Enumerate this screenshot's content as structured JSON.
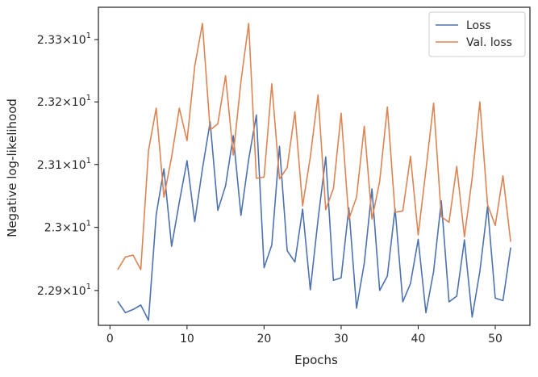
{
  "chart_data": {
    "type": "line",
    "title": "",
    "xlabel": "Epochs",
    "ylabel": "Negative log-likelihood",
    "xlim": [
      -1.5,
      54.5
    ],
    "ylim": [
      22.845,
      23.352
    ],
    "y_scale": "log",
    "grid": false,
    "legend_position": "top-right",
    "x_ticks": [
      {
        "value": 0,
        "label": "0"
      },
      {
        "value": 10,
        "label": "10"
      },
      {
        "value": 20,
        "label": "20"
      },
      {
        "value": 30,
        "label": "30"
      },
      {
        "value": 40,
        "label": "40"
      },
      {
        "value": 50,
        "label": "50"
      }
    ],
    "y_ticks": [
      {
        "value": 22.9,
        "mantissa": "2.29",
        "times": "×",
        "base": "10",
        "exp": "1"
      },
      {
        "value": 23.0,
        "mantissa": "2.3",
        "times": "×",
        "base": "10",
        "exp": "1"
      },
      {
        "value": 23.1,
        "mantissa": "2.31",
        "times": "×",
        "base": "10",
        "exp": "1"
      },
      {
        "value": 23.2,
        "mantissa": "2.32",
        "times": "×",
        "base": "10",
        "exp": "1"
      },
      {
        "value": 23.3,
        "mantissa": "2.33",
        "times": "×",
        "base": "10",
        "exp": "1"
      }
    ],
    "x": [
      1,
      2,
      3,
      4,
      5,
      6,
      7,
      8,
      9,
      10,
      11,
      12,
      13,
      14,
      15,
      16,
      17,
      18,
      19,
      20,
      21,
      22,
      23,
      24,
      25,
      26,
      27,
      28,
      29,
      30,
      31,
      32,
      33,
      34,
      35,
      36,
      37,
      38,
      39,
      40,
      41,
      42,
      43,
      44,
      45,
      46,
      47,
      48,
      49,
      50,
      51,
      52
    ],
    "series": [
      {
        "name": "Loss",
        "color": "#4c72b0",
        "values": [
          22.883,
          22.865,
          22.87,
          22.877,
          22.853,
          23.02,
          23.093,
          22.97,
          23.04,
          23.106,
          23.009,
          23.093,
          23.168,
          23.027,
          23.066,
          23.146,
          23.019,
          23.108,
          23.179,
          22.936,
          22.972,
          23.129,
          22.963,
          22.945,
          23.029,
          22.901,
          23.012,
          23.112,
          22.916,
          22.92,
          23.031,
          22.872,
          22.943,
          23.061,
          22.9,
          22.923,
          23.03,
          22.882,
          22.911,
          22.981,
          22.865,
          22.93,
          23.042,
          22.882,
          22.891,
          22.98,
          22.858,
          22.93,
          23.033,
          22.888,
          22.884,
          22.968
        ]
      },
      {
        "name": "Val. loss",
        "color": "#dd8452",
        "values": [
          22.933,
          22.953,
          22.956,
          22.933,
          23.122,
          23.19,
          23.048,
          23.112,
          23.19,
          23.138,
          23.257,
          23.326,
          23.155,
          23.165,
          23.242,
          23.115,
          23.233,
          23.326,
          23.078,
          23.08,
          23.229,
          23.077,
          23.095,
          23.184,
          23.034,
          23.112,
          23.211,
          23.028,
          23.062,
          23.182,
          23.013,
          23.048,
          23.161,
          23.013,
          23.073,
          23.192,
          23.024,
          23.026,
          23.113,
          22.988,
          23.091,
          23.198,
          23.017,
          23.008,
          23.097,
          22.985,
          23.078,
          23.2,
          23.036,
          23.003,
          23.082,
          22.977
        ]
      }
    ]
  }
}
